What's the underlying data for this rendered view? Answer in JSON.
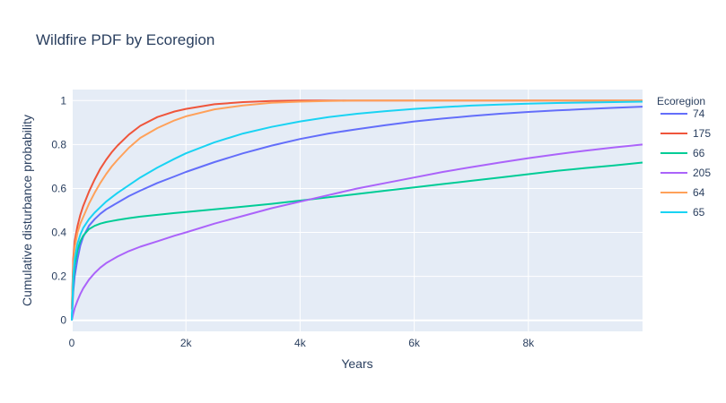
{
  "chart_data": {
    "type": "line",
    "title": "Wildfire PDF by Ecoregion",
    "xlabel": "Years",
    "ylabel": "Cumulative disturbance probability",
    "xlim": [
      0,
      10000
    ],
    "ylim": [
      -0.05,
      1.05
    ],
    "x_ticks": [
      0,
      2000,
      4000,
      6000,
      8000
    ],
    "x_tick_labels": [
      "0",
      "2k",
      "4k",
      "6k",
      "8k"
    ],
    "y_ticks": [
      0,
      0.2,
      0.4,
      0.6,
      0.8,
      1
    ],
    "y_tick_labels": [
      "0",
      "0.2",
      "0.4",
      "0.6",
      "0.8",
      "1"
    ],
    "grid": true,
    "legend": {
      "title": "Ecoregion",
      "placement": "right"
    },
    "x": [
      0,
      25,
      50,
      100,
      150,
      200,
      300,
      400,
      500,
      600,
      700,
      800,
      1000,
      1200,
      1500,
      1800,
      2000,
      2500,
      3000,
      3500,
      4000,
      4500,
      5000,
      5500,
      6000,
      6500,
      7000,
      7500,
      8000,
      8500,
      9000,
      9500,
      10000
    ],
    "series": [
      {
        "name": "74",
        "color": "#636efa",
        "values": [
          0.0,
          0.13,
          0.2,
          0.28,
          0.34,
          0.38,
          0.43,
          0.46,
          0.485,
          0.505,
          0.52,
          0.535,
          0.565,
          0.59,
          0.625,
          0.655,
          0.675,
          0.72,
          0.76,
          0.795,
          0.825,
          0.85,
          0.87,
          0.888,
          0.905,
          0.918,
          0.93,
          0.94,
          0.948,
          0.955,
          0.961,
          0.967,
          0.972
        ]
      },
      {
        "name": "175",
        "color": "#ef553b",
        "values": [
          0.05,
          0.28,
          0.36,
          0.43,
          0.48,
          0.52,
          0.585,
          0.64,
          0.69,
          0.73,
          0.765,
          0.795,
          0.845,
          0.885,
          0.925,
          0.95,
          0.962,
          0.983,
          0.993,
          0.998,
          1.0,
          1.0,
          1.0,
          1.0,
          1.0,
          1.0,
          1.0,
          1.0,
          1.0,
          1.0,
          1.0,
          1.0,
          1.0
        ]
      },
      {
        "name": "66",
        "color": "#00cc96",
        "values": [
          0.0,
          0.17,
          0.25,
          0.32,
          0.36,
          0.385,
          0.415,
          0.43,
          0.44,
          0.447,
          0.452,
          0.457,
          0.465,
          0.472,
          0.48,
          0.488,
          0.493,
          0.505,
          0.517,
          0.53,
          0.545,
          0.56,
          0.575,
          0.59,
          0.605,
          0.62,
          0.635,
          0.65,
          0.665,
          0.68,
          0.693,
          0.705,
          0.718
        ]
      },
      {
        "name": "205",
        "color": "#ab63fa",
        "values": [
          0.0,
          0.03,
          0.055,
          0.09,
          0.12,
          0.145,
          0.185,
          0.215,
          0.24,
          0.26,
          0.275,
          0.29,
          0.315,
          0.335,
          0.36,
          0.385,
          0.4,
          0.44,
          0.475,
          0.51,
          0.54,
          0.57,
          0.6,
          0.625,
          0.65,
          0.675,
          0.697,
          0.718,
          0.738,
          0.756,
          0.772,
          0.787,
          0.8
        ]
      },
      {
        "name": "64",
        "color": "#ffa15a",
        "values": [
          0.05,
          0.25,
          0.33,
          0.4,
          0.44,
          0.47,
          0.53,
          0.58,
          0.625,
          0.665,
          0.7,
          0.73,
          0.785,
          0.83,
          0.875,
          0.91,
          0.928,
          0.96,
          0.978,
          0.99,
          0.995,
          0.998,
          1.0,
          1.0,
          1.0,
          1.0,
          1.0,
          1.0,
          1.0,
          1.0,
          1.0,
          1.0,
          1.0
        ]
      },
      {
        "name": "65",
        "color": "#19d3f3",
        "values": [
          0.0,
          0.2,
          0.28,
          0.35,
          0.39,
          0.42,
          0.46,
          0.49,
          0.515,
          0.54,
          0.56,
          0.58,
          0.615,
          0.65,
          0.695,
          0.735,
          0.76,
          0.81,
          0.85,
          0.88,
          0.905,
          0.925,
          0.94,
          0.952,
          0.962,
          0.97,
          0.977,
          0.982,
          0.986,
          0.989,
          0.991,
          0.993,
          0.995
        ]
      }
    ]
  }
}
